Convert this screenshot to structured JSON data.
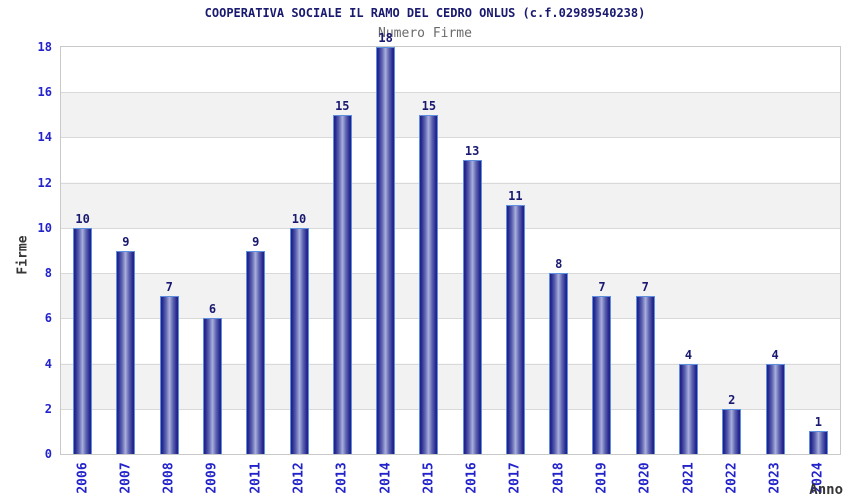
{
  "chart_data": {
    "type": "bar",
    "title": "COOPERATIVA SOCIALE IL RAMO DEL CEDRO ONLUS (c.f.02989540238)",
    "subtitle": "Numero Firme",
    "xlabel": "Anno",
    "ylabel": "Firme",
    "categories": [
      "2006",
      "2007",
      "2008",
      "2009",
      "2011",
      "2012",
      "2013",
      "2014",
      "2015",
      "2016",
      "2017",
      "2018",
      "2019",
      "2020",
      "2021",
      "2022",
      "2023",
      "2024"
    ],
    "values": [
      10,
      9,
      7,
      6,
      9,
      10,
      15,
      18,
      15,
      13,
      11,
      8,
      7,
      7,
      4,
      2,
      4,
      1
    ],
    "ylim": [
      0,
      18
    ],
    "ytick_step": 2,
    "grid": true,
    "legend_position": "none",
    "band_fill": "alternating horizontal bands every 2 units, gray on 2-4, 6-8, 10-12, 14-16",
    "colors": {
      "background": "#ffffff",
      "title": "#191970",
      "subtitle": "#6b6b6b",
      "axis_title": "#353535",
      "tick_label": "#2323cc",
      "value_label": "#191970",
      "bar_edge": "#23238c",
      "bar_mid": "#5f66b2",
      "bar_center": "#aab0dc",
      "bar_outline": "#5e8fdf",
      "band_gray": "#f2f2f2",
      "gridline": "#d9d9d9",
      "plot_border": "#c9c9c9"
    }
  }
}
